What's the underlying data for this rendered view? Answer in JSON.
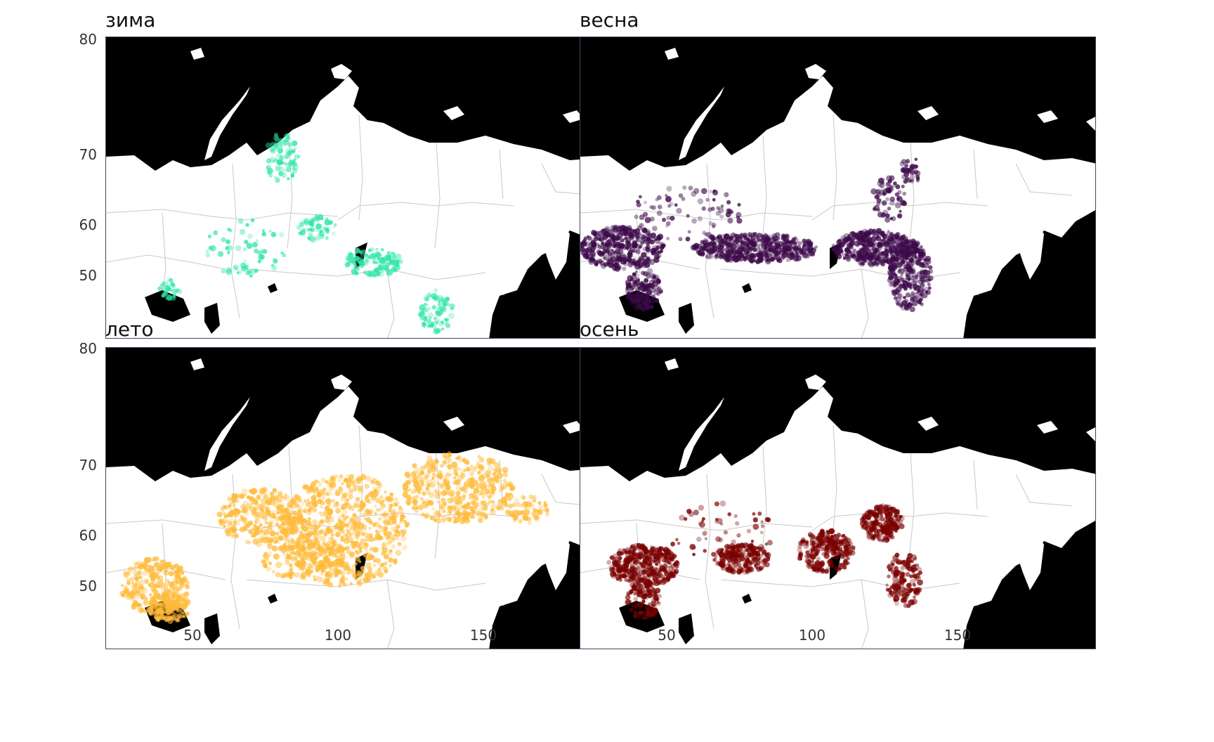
{
  "panels": [
    {
      "id": "winter",
      "title": "зима",
      "color": "#2ee6a8"
    },
    {
      "id": "spring",
      "title": "весна",
      "color": "#3d0a4a"
    },
    {
      "id": "summer",
      "title": "лето",
      "color": "#ffbb3a"
    },
    {
      "id": "autumn",
      "title": "осень",
      "color": "#7a0000"
    }
  ],
  "axes": {
    "y_ticks": [
      "80",
      "70",
      "60",
      "50"
    ],
    "x_ticks": [
      "50",
      "100",
      "150"
    ]
  },
  "colors": {
    "sea": "#000000",
    "land": "#ffffff",
    "borders": "#c8c8c8",
    "frame": "#3d4a5c"
  }
}
